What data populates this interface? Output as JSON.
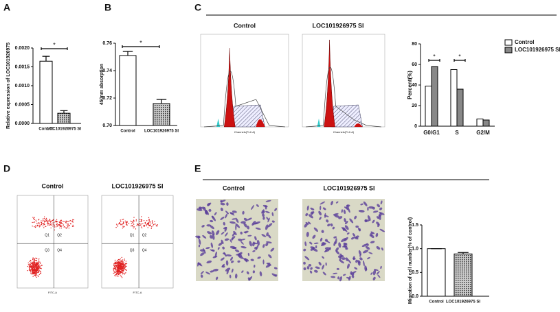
{
  "chart_data": [
    {
      "type": "bar",
      "panel": "A",
      "ylabel": "Relative expression of LOC101926975",
      "categories": [
        "Control",
        "LOC101926975 SI"
      ],
      "values": [
        0.00165,
        0.00027
      ],
      "errors": [
        0.00013,
        7e-05
      ],
      "ylim": [
        0,
        0.002
      ],
      "yticks": [
        {
          "value": 0,
          "label": "0.0000"
        },
        {
          "value": 0.0005,
          "label": "0.0005"
        },
        {
          "value": 0.001,
          "label": "0.0010"
        },
        {
          "value": 0.0015,
          "label": "0.0015"
        },
        {
          "value": 0.002,
          "label": "0.0020"
        }
      ],
      "annotations": [
        "*"
      ]
    },
    {
      "type": "bar",
      "panel": "B",
      "ylabel": "450nm absorption",
      "categories": [
        "Control",
        "LOC101926975 SI"
      ],
      "values": [
        0.751,
        0.716
      ],
      "errors": [
        0.003,
        0.003
      ],
      "ylim": [
        0.7,
        0.76
      ],
      "yticks": [
        {
          "value": 0.7,
          "label": "0.70"
        },
        0.72,
        0.74,
        {
          "value": 0.76,
          "label": "0.76"
        }
      ],
      "annotations": [
        "*"
      ]
    },
    {
      "type": "bar",
      "panel": "C",
      "ylabel": "Percent(%)",
      "categories": [
        "G0/G1",
        "S",
        "G2/M"
      ],
      "series": [
        {
          "name": "Control",
          "color": "#ffffff",
          "values": [
            39,
            55,
            7
          ]
        },
        {
          "name": "LOC101926975 SI",
          "color": "#888888",
          "values": [
            58,
            36,
            6
          ]
        }
      ],
      "ylim": [
        0,
        80
      ],
      "yticks": [
        0,
        20,
        40,
        60,
        80
      ],
      "legend": "top-right",
      "annotations": [
        "*",
        "*"
      ]
    },
    {
      "type": "bar",
      "panel": "E",
      "ylabel": "Migration of cell number(% of control)",
      "categories": [
        "Control",
        "LOC101926975 SI"
      ],
      "values": [
        1.0,
        0.89
      ],
      "errors": [
        0,
        0.03
      ],
      "ylim": [
        0,
        1.5
      ],
      "yticks": [
        {
          "value": 0,
          "label": "0.0"
        },
        {
          "value": 0.5,
          "label": "0.5"
        },
        {
          "value": 1,
          "label": "1.0"
        },
        {
          "value": 1.5,
          "label": "1.5"
        }
      ],
      "annotations": []
    }
  ],
  "image_panels": [
    {
      "panel": "C",
      "titles": [
        "Control",
        "LOC101926975 SI"
      ],
      "xlabel": "Channels(FL2-A)"
    },
    {
      "panel": "D",
      "titles": [
        "Control",
        "LOC101926975 SI"
      ],
      "quadrants": [
        "Q1",
        "Q2",
        "Q3",
        "Q4"
      ],
      "xlabel": "FITC-A"
    },
    {
      "panel": "E",
      "titles": [
        "Control",
        "LOC101926975 SI"
      ]
    }
  ]
}
